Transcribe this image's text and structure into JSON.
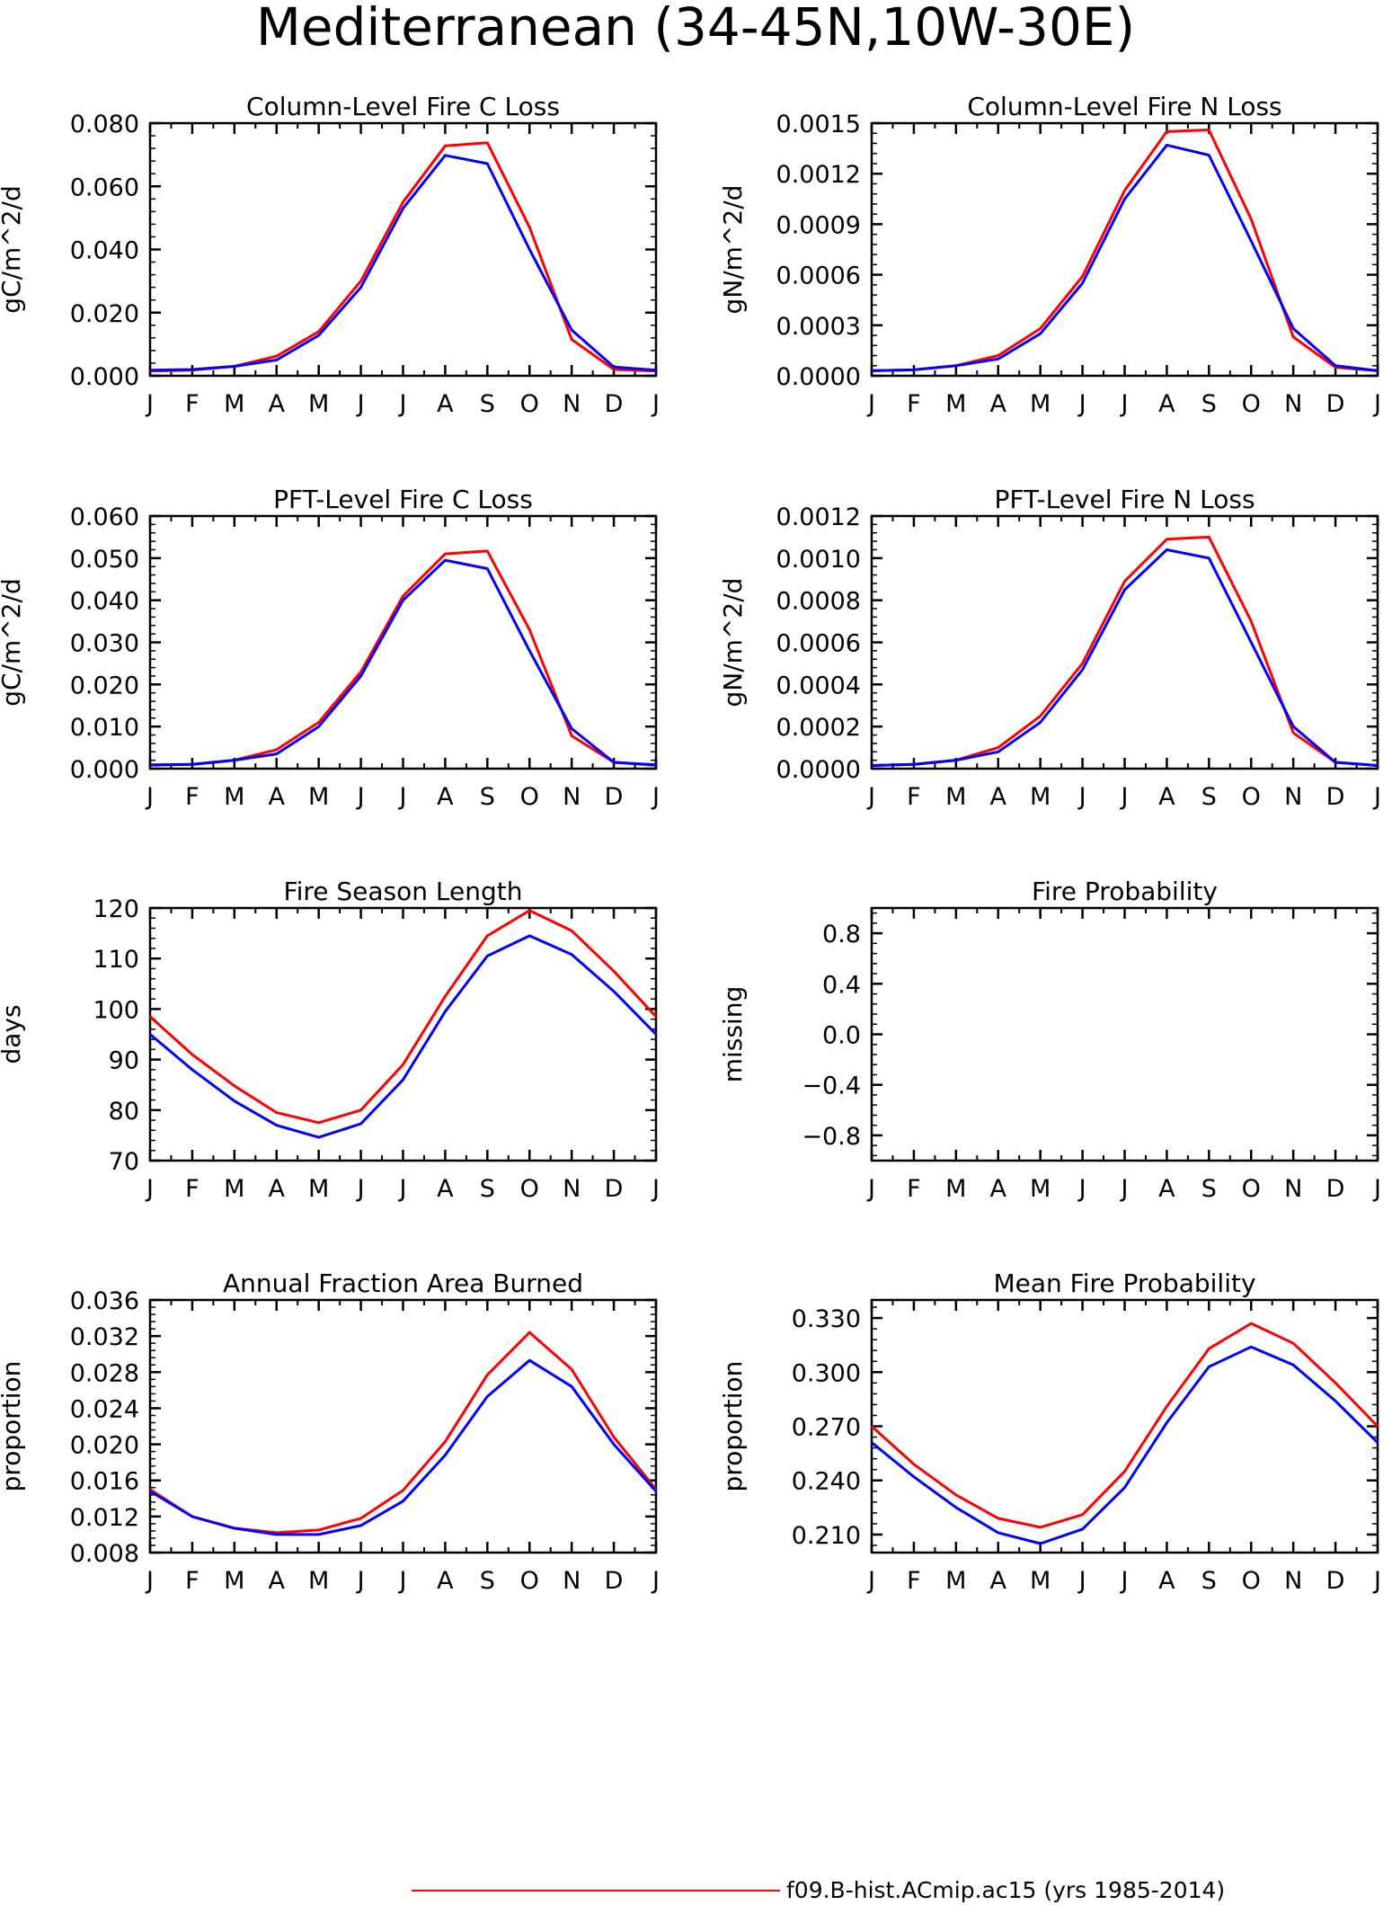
{
  "page_title": "Mediterranean (34-45N,10W-30E)",
  "colors": {
    "series1": "#ff0000",
    "series2": "#0000ff"
  },
  "legend": [
    {
      "label": "f09.B-hist.ACmip.ac15 (yrs 1985-2014)",
      "color": "#ff0000"
    }
  ],
  "chart_data": [
    {
      "type": "line",
      "title": "Column-Level Fire C Loss",
      "ylabel": "gC/m^2/d",
      "categories": [
        "J",
        "F",
        "M",
        "A",
        "M",
        "J",
        "J",
        "A",
        "S",
        "O",
        "N",
        "D",
        "J"
      ],
      "ylim": [
        0,
        0.08
      ],
      "yticks": [
        0,
        0.02,
        0.04,
        0.06,
        0.08
      ],
      "ytick_labels": [
        "0.000",
        "0.020",
        "0.040",
        "0.060",
        "0.080"
      ],
      "series": [
        {
          "color": "#ff0000",
          "values": [
            0.0015,
            0.0018,
            0.003,
            0.0062,
            0.014,
            0.03,
            0.055,
            0.0728,
            0.0738,
            0.047,
            0.0115,
            0.002,
            0.0015
          ]
        },
        {
          "color": "#0000ff",
          "values": [
            0.0018,
            0.002,
            0.003,
            0.005,
            0.0128,
            0.028,
            0.053,
            0.0698,
            0.0672,
            0.04,
            0.0145,
            0.0028,
            0.0018
          ]
        }
      ]
    },
    {
      "type": "line",
      "title": "Column-Level Fire N Loss",
      "ylabel": "gN/m^2/d",
      "categories": [
        "J",
        "F",
        "M",
        "A",
        "M",
        "J",
        "J",
        "A",
        "S",
        "O",
        "N",
        "D",
        "J"
      ],
      "ylim": [
        0,
        0.0015
      ],
      "yticks": [
        0,
        0.0003,
        0.0006,
        0.0009,
        0.0012,
        0.0015
      ],
      "ytick_labels": [
        "0.0000",
        "0.0003",
        "0.0006",
        "0.0009",
        "0.0012",
        "0.0015"
      ],
      "series": [
        {
          "color": "#ff0000",
          "values": [
            3e-05,
            3.5e-05,
            6e-05,
            0.00012,
            0.00028,
            0.00059,
            0.0011,
            0.00145,
            0.00146,
            0.00093,
            0.00023,
            5e-05,
            3e-05
          ]
        },
        {
          "color": "#0000ff",
          "values": [
            3e-05,
            3.5e-05,
            6e-05,
            0.0001,
            0.00025,
            0.00055,
            0.00105,
            0.00137,
            0.00131,
            0.0008,
            0.00028,
            6e-05,
            3e-05
          ]
        }
      ]
    },
    {
      "type": "line",
      "title": "PFT-Level Fire C Loss",
      "ylabel": "gC/m^2/d",
      "categories": [
        "J",
        "F",
        "M",
        "A",
        "M",
        "J",
        "J",
        "A",
        "S",
        "O",
        "N",
        "D",
        "J"
      ],
      "ylim": [
        0,
        0.06
      ],
      "yticks": [
        0,
        0.01,
        0.02,
        0.03,
        0.04,
        0.05,
        0.06
      ],
      "ytick_labels": [
        "0.000",
        "0.010",
        "0.020",
        "0.030",
        "0.040",
        "0.050",
        "0.060"
      ],
      "series": [
        {
          "color": "#ff0000",
          "values": [
            0.0008,
            0.001,
            0.002,
            0.0045,
            0.011,
            0.023,
            0.041,
            0.051,
            0.0517,
            0.033,
            0.0078,
            0.0015,
            0.0008
          ]
        },
        {
          "color": "#0000ff",
          "values": [
            0.0009,
            0.001,
            0.002,
            0.0035,
            0.01,
            0.022,
            0.04,
            0.0495,
            0.0475,
            0.028,
            0.0095,
            0.0015,
            0.0009
          ]
        }
      ]
    },
    {
      "type": "line",
      "title": "PFT-Level Fire N Loss",
      "ylabel": "gN/m^2/d",
      "categories": [
        "J",
        "F",
        "M",
        "A",
        "M",
        "J",
        "J",
        "A",
        "S",
        "O",
        "N",
        "D",
        "J"
      ],
      "ylim": [
        0,
        0.0012
      ],
      "yticks": [
        0,
        0.0002,
        0.0004,
        0.0006,
        0.0008,
        0.001,
        0.0012
      ],
      "ytick_labels": [
        "0.0000",
        "0.0002",
        "0.0004",
        "0.0006",
        "0.0008",
        "0.0010",
        "0.0012"
      ],
      "series": [
        {
          "color": "#ff0000",
          "values": [
            1.5e-05,
            2e-05,
            4e-05,
            0.0001,
            0.00025,
            0.0005,
            0.00089,
            0.00109,
            0.0011,
            0.0007,
            0.00017,
            3e-05,
            1.5e-05
          ]
        },
        {
          "color": "#0000ff",
          "values": [
            1.5e-05,
            2e-05,
            4e-05,
            8e-05,
            0.00022,
            0.00047,
            0.00085,
            0.00104,
            0.001,
            0.0006,
            0.0002,
            3e-05,
            1.5e-05
          ]
        }
      ]
    },
    {
      "type": "line",
      "title": "Fire Season Length",
      "ylabel": "days",
      "categories": [
        "J",
        "F",
        "M",
        "A",
        "M",
        "J",
        "J",
        "A",
        "S",
        "O",
        "N",
        "D",
        "J"
      ],
      "ylim": [
        70,
        120
      ],
      "yticks": [
        70,
        80,
        90,
        100,
        110,
        120
      ],
      "ytick_labels": [
        "70",
        "80",
        "90",
        "100",
        "110",
        "120"
      ],
      "series": [
        {
          "color": "#ff0000",
          "values": [
            98.5,
            91,
            84.8,
            79.5,
            77.5,
            80,
            89,
            102.5,
            114.5,
            119.5,
            115.5,
            107.5,
            98.5
          ]
        },
        {
          "color": "#0000ff",
          "values": [
            95,
            88,
            81.8,
            77,
            74.6,
            77.3,
            86,
            99.5,
            110.5,
            114.5,
            110.8,
            103.5,
            95
          ]
        }
      ]
    },
    {
      "type": "line",
      "title": "Fire Probability",
      "ylabel": "missing",
      "categories": [
        "J",
        "F",
        "M",
        "A",
        "M",
        "J",
        "J",
        "A",
        "S",
        "O",
        "N",
        "D",
        "J"
      ],
      "ylim": [
        -1,
        1
      ],
      "yticks": [
        -0.8,
        -0.4,
        0,
        0.4,
        0.8
      ],
      "ytick_labels": [
        "−0.8",
        "−0.4",
        "0.0",
        "0.4",
        "0.8"
      ],
      "series": []
    },
    {
      "type": "line",
      "title": "Annual Fraction Area Burned",
      "ylabel": "proportion",
      "categories": [
        "J",
        "F",
        "M",
        "A",
        "M",
        "J",
        "J",
        "A",
        "S",
        "O",
        "N",
        "D",
        "J"
      ],
      "ylim": [
        0.008,
        0.036
      ],
      "yticks": [
        0.008,
        0.012,
        0.016,
        0.02,
        0.024,
        0.028,
        0.032,
        0.036
      ],
      "ytick_labels": [
        "0.008",
        "0.012",
        "0.016",
        "0.020",
        "0.024",
        "0.028",
        "0.032",
        "0.036"
      ],
      "series": [
        {
          "color": "#ff0000",
          "values": [
            0.015,
            0.012,
            0.0107,
            0.0102,
            0.0105,
            0.0118,
            0.0149,
            0.0203,
            0.0277,
            0.0324,
            0.0283,
            0.0208,
            0.015
          ]
        },
        {
          "color": "#0000ff",
          "values": [
            0.0148,
            0.012,
            0.0107,
            0.01,
            0.01,
            0.011,
            0.0137,
            0.0188,
            0.0253,
            0.0293,
            0.0264,
            0.02,
            0.0148
          ]
        }
      ]
    },
    {
      "type": "line",
      "title": "Mean Fire Probability",
      "ylabel": "proportion",
      "categories": [
        "J",
        "F",
        "M",
        "A",
        "M",
        "J",
        "J",
        "A",
        "S",
        "O",
        "N",
        "D",
        "J"
      ],
      "ylim": [
        0.2,
        0.34
      ],
      "yticks": [
        0.21,
        0.24,
        0.27,
        0.3,
        0.33
      ],
      "ytick_labels": [
        "0.210",
        "0.240",
        "0.270",
        "0.300",
        "0.330"
      ],
      "series": [
        {
          "color": "#ff0000",
          "values": [
            0.27,
            0.249,
            0.232,
            0.219,
            0.214,
            0.221,
            0.245,
            0.281,
            0.313,
            0.327,
            0.316,
            0.294,
            0.27
          ]
        },
        {
          "color": "#0000ff",
          "values": [
            0.261,
            0.242,
            0.225,
            0.211,
            0.205,
            0.213,
            0.236,
            0.272,
            0.303,
            0.314,
            0.304,
            0.284,
            0.261
          ]
        }
      ]
    }
  ]
}
